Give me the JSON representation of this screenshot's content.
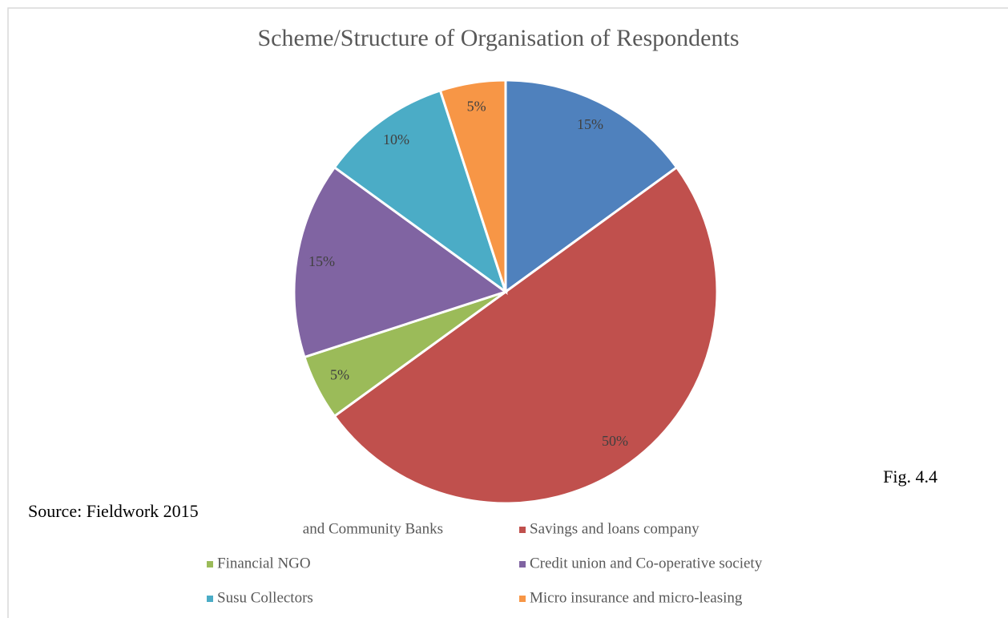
{
  "chart_data": {
    "type": "pie",
    "title": "Scheme/Structure  of Organisation  of Respondents",
    "categories": [
      "and Community Banks",
      "Savings and loans company",
      "Financial NGO",
      "Credit union and Co-operative society",
      "Susu Collectors",
      "Micro insurance and micro-leasing"
    ],
    "values": [
      15,
      50,
      5,
      15,
      10,
      5
    ],
    "value_labels": [
      "15%",
      "50%",
      "5%",
      "15%",
      "10%",
      "5%"
    ],
    "colors": [
      "#4f81bd",
      "#c0504d",
      "#9bbb59",
      "#8064a2",
      "#4bacc6",
      "#f79646"
    ],
    "annotations": [
      "Fig. 4.4",
      "Source: Fieldwork 2015"
    ]
  }
}
